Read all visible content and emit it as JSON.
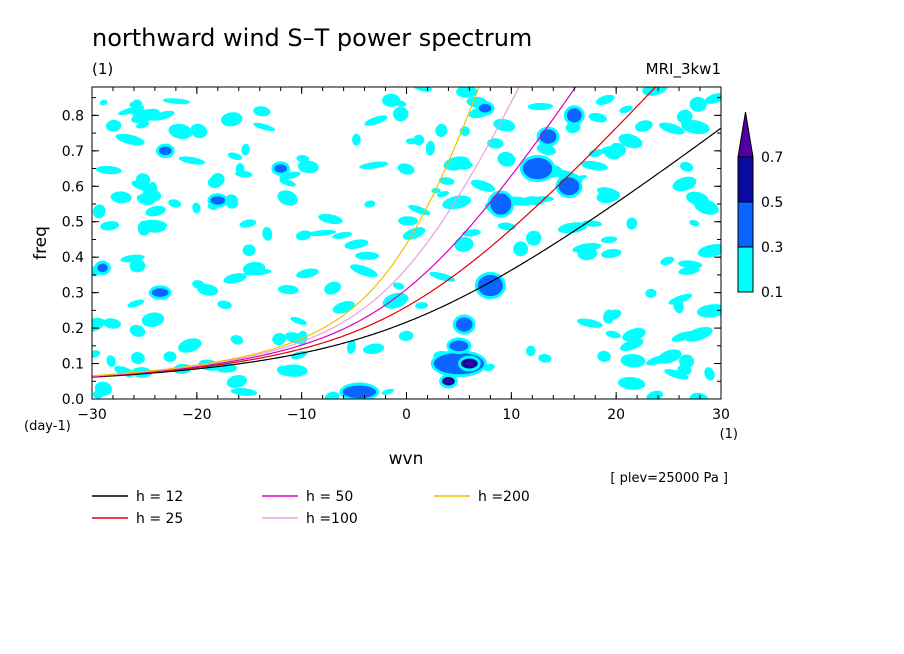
{
  "chart_data": {
    "type": "heatmap",
    "title": "northward wind S–T power spectrum",
    "subtitle_left": "(1)",
    "subtitle_right": "MRI_3kw1",
    "xlabel": "wvn",
    "ylabel": "freq",
    "x_unit_label": "(1)",
    "y_unit_label": "(day-1)",
    "xlim": [
      -30,
      30
    ],
    "ylim": [
      0.0,
      0.88
    ],
    "x_ticks": [
      -30,
      -20,
      -10,
      0,
      10,
      20,
      30
    ],
    "y_ticks": [
      0.0,
      0.1,
      0.2,
      0.3,
      0.4,
      0.5,
      0.6,
      0.7,
      0.8
    ],
    "x_tick_labels": [
      "−30",
      "−20",
      "−10",
      "0",
      "10",
      "20",
      "30"
    ],
    "y_tick_labels": [
      "0.0",
      "0.1",
      "0.2",
      "0.3",
      "0.4",
      "0.5",
      "0.6",
      "0.7",
      "0.8"
    ],
    "footnote": "[ plev=25000 Pa ]",
    "colorbar": {
      "levels": [
        "0.1",
        "0.3",
        "0.5",
        "0.7"
      ],
      "colors": [
        "#00ffff",
        "#0a64ff",
        "#0a0aa0",
        "#5000a0"
      ],
      "extend": "max"
    },
    "contour_blobs": [
      {
        "level": 1,
        "cx": -4.5,
        "cy": 0.02,
        "rx": 1.6,
        "ry": 0.018
      },
      {
        "level": 1,
        "cx": 5.0,
        "cy": 0.1,
        "rx": 2.4,
        "ry": 0.03
      },
      {
        "level": 2,
        "cx": 6.0,
        "cy": 0.1,
        "rx": 0.8,
        "ry": 0.014
      },
      {
        "level": 2,
        "cx": 4.0,
        "cy": 0.05,
        "rx": 0.6,
        "ry": 0.012
      },
      {
        "level": 1,
        "cx": 5.0,
        "cy": 0.15,
        "rx": 0.9,
        "ry": 0.015
      },
      {
        "level": 1,
        "cx": 5.5,
        "cy": 0.21,
        "rx": 0.8,
        "ry": 0.02
      },
      {
        "level": 1,
        "cx": 8.0,
        "cy": 0.32,
        "rx": 1.2,
        "ry": 0.03
      },
      {
        "level": 1,
        "cx": 9.0,
        "cy": 0.55,
        "rx": 1.0,
        "ry": 0.03
      },
      {
        "level": 1,
        "cx": 12.5,
        "cy": 0.65,
        "rx": 1.4,
        "ry": 0.03
      },
      {
        "level": 1,
        "cx": 15.5,
        "cy": 0.6,
        "rx": 1.0,
        "ry": 0.025
      },
      {
        "level": 1,
        "cx": 13.5,
        "cy": 0.74,
        "rx": 0.8,
        "ry": 0.02
      },
      {
        "level": 1,
        "cx": 16.0,
        "cy": 0.8,
        "rx": 0.7,
        "ry": 0.02
      },
      {
        "level": 1,
        "cx": -23.5,
        "cy": 0.3,
        "rx": 0.8,
        "ry": 0.012
      },
      {
        "level": 1,
        "cx": -18.0,
        "cy": 0.56,
        "rx": 0.7,
        "ry": 0.012
      },
      {
        "level": 1,
        "cx": -23.0,
        "cy": 0.7,
        "rx": 0.6,
        "ry": 0.012
      },
      {
        "level": 1,
        "cx": -12.0,
        "cy": 0.65,
        "rx": 0.6,
        "ry": 0.012
      },
      {
        "level": 1,
        "cx": 7.5,
        "cy": 0.82,
        "rx": 0.6,
        "ry": 0.012
      },
      {
        "level": 1,
        "cx": -29.0,
        "cy": 0.37,
        "rx": 0.5,
        "ry": 0.012
      }
    ],
    "series": [
      {
        "name": "h = 12",
        "color": "#000000",
        "h": 12
      },
      {
        "name": "h = 25",
        "color": "#e00000",
        "h": 25
      },
      {
        "name": "h = 50",
        "color": "#dd00bb",
        "h": 50
      },
      {
        "name": "h =100",
        "color": "#e8a0e0",
        "h": 100
      },
      {
        "name": "h =200",
        "color": "#f0c000",
        "h": 200
      }
    ]
  }
}
